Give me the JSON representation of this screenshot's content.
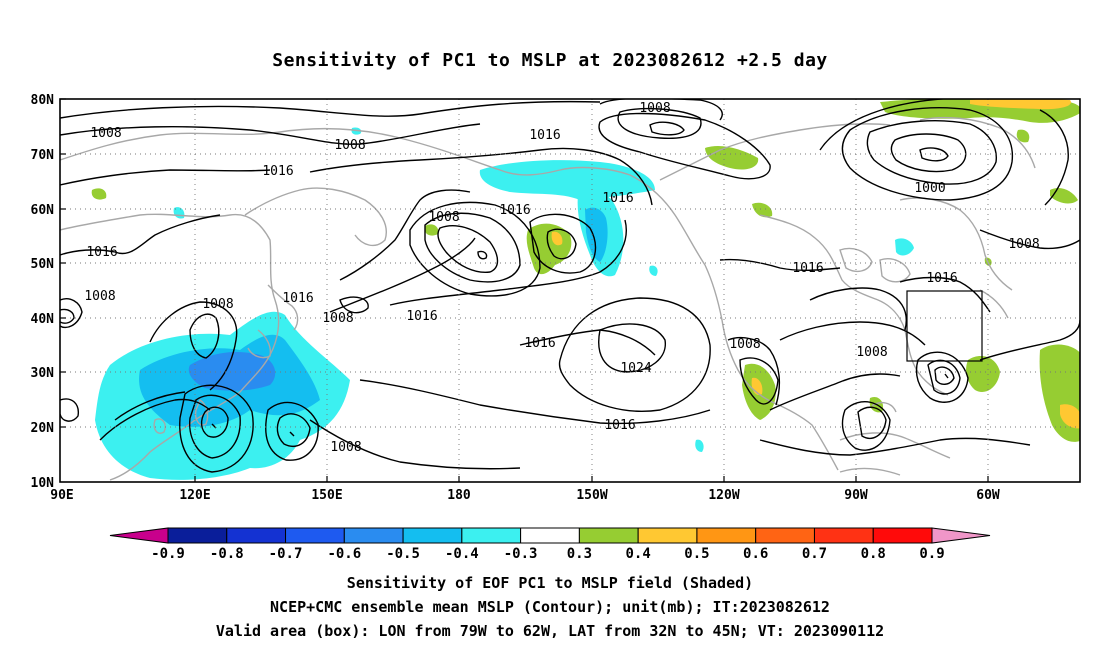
{
  "title": "Sensitivity of PC1 to MSLP at 2023082612 +2.5 day",
  "map": {
    "lat_labels": [
      "80N",
      "70N",
      "60N",
      "50N",
      "40N",
      "30N",
      "20N",
      "10N"
    ],
    "lon_labels": [
      "90E",
      "120E",
      "150E",
      "180",
      "150W",
      "120W",
      "90W",
      "60W"
    ],
    "contour_labels": [
      {
        "text": "1008",
        "name": "isobar-label-1008-nw"
      },
      {
        "text": "1008",
        "name": "isobar-label-1008-n"
      },
      {
        "text": "1008",
        "name": "isobar-label-1008-top"
      },
      {
        "text": "1016",
        "name": "isobar-label-1016-a"
      },
      {
        "text": "1016",
        "name": "isobar-label-1016-b"
      },
      {
        "text": "1016",
        "name": "isobar-label-1016-c"
      },
      {
        "text": "1016",
        "name": "isobar-label-1016-d"
      },
      {
        "text": "1008",
        "name": "isobar-label-1008-mid"
      },
      {
        "text": "1016",
        "name": "isobar-label-1016-e"
      },
      {
        "text": "1016",
        "name": "isobar-label-1016-f"
      },
      {
        "text": "1008",
        "name": "isobar-label-1008-g"
      },
      {
        "text": "1016",
        "name": "isobar-label-1016-g"
      },
      {
        "text": "1008",
        "name": "isobar-label-1008-h"
      },
      {
        "text": "1016",
        "name": "isobar-label-1016-h"
      },
      {
        "text": "1016",
        "name": "isobar-label-1016-i"
      },
      {
        "text": "1024",
        "name": "isobar-label-1024"
      },
      {
        "text": "1016",
        "name": "isobar-label-1016-j"
      },
      {
        "text": "1008",
        "name": "isobar-label-1008-i"
      },
      {
        "text": "1008",
        "name": "isobar-label-1008-j"
      },
      {
        "text": "1016",
        "name": "isobar-label-1016-k"
      },
      {
        "text": "1008",
        "name": "isobar-label-1008-k"
      },
      {
        "text": "1000",
        "name": "isobar-label-1000"
      },
      {
        "text": "1008",
        "name": "isobar-label-1008-l"
      },
      {
        "text": "1008",
        "name": "isobar-label-1008-m"
      }
    ],
    "valid_box": {
      "lon_from": "79W",
      "lon_to": "62W",
      "lat_from": "32N",
      "lat_to": "45N"
    }
  },
  "colorbar": {
    "colors": [
      "#c8008c",
      "#0a1e9a",
      "#1432d2",
      "#1e5af0",
      "#2a8cf0",
      "#14bef0",
      "#3cf0f0",
      "#ffffff",
      "#96cd32",
      "#ffc832",
      "#ff9614",
      "#ff6414",
      "#ff3214",
      "#ff0a0a",
      "#f096c8"
    ],
    "labels": [
      "-0.9",
      "-0.8",
      "-0.7",
      "-0.6",
      "-0.5",
      "-0.4",
      "-0.3",
      "0.3",
      "0.4",
      "0.5",
      "0.6",
      "0.7",
      "0.8",
      "0.9"
    ]
  },
  "captions": {
    "line1": "Sensitivity of EOF PC1 to MSLP field (Shaded)",
    "line2": "NCEP+CMC ensemble mean MSLP (Contour); unit(mb); IT:2023082612",
    "line3": "Valid area (box): LON from 79W to 62W, LAT from 32N to 45N; VT: 2023090112"
  }
}
